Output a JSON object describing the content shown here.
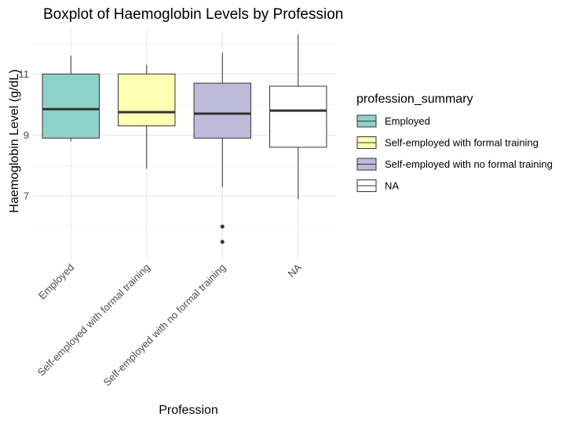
{
  "chart_data": {
    "type": "boxplot",
    "title": "Boxplot of Haemoglobin Levels by Profession",
    "xlabel": "Profession",
    "ylabel": "Haemoglobin Level (g/dL)",
    "categories": [
      "Employed",
      "Self-employed with formal training",
      "Self-employed with no formal training",
      "NA"
    ],
    "ylim": [
      4.9,
      12.5
    ],
    "yticks": [
      7,
      9,
      11
    ],
    "grid": true,
    "boxes": [
      {
        "category": "Employed",
        "min": 8.8,
        "q1": 8.9,
        "median": 9.85,
        "q3": 11.0,
        "max": 11.6,
        "outliers": [],
        "color": "#8ED3C7"
      },
      {
        "category": "Self-employed with formal training",
        "min": 7.9,
        "q1": 9.3,
        "median": 9.75,
        "q3": 11.0,
        "max": 11.3,
        "outliers": [],
        "color": "#FFFFB3"
      },
      {
        "category": "Self-employed with no formal training",
        "min": 7.3,
        "q1": 8.9,
        "median": 9.7,
        "q3": 10.7,
        "max": 11.7,
        "outliers": [
          6.0,
          5.5
        ],
        "color": "#BEBADA"
      },
      {
        "category": "NA",
        "min": 6.9,
        "q1": 8.6,
        "median": 9.8,
        "q3": 10.6,
        "max": 12.3,
        "outliers": [],
        "color": "#FFFFFF"
      }
    ],
    "legend": {
      "title": "profession_summary",
      "position": "right",
      "items": [
        {
          "label": "Employed",
          "color": "#8ED3C7"
        },
        {
          "label": "Self-employed with formal training",
          "color": "#FFFFB3"
        },
        {
          "label": "Self-employed with no formal training",
          "color": "#BEBADA"
        },
        {
          "label": "NA",
          "color": "#FFFFFF"
        }
      ]
    }
  }
}
